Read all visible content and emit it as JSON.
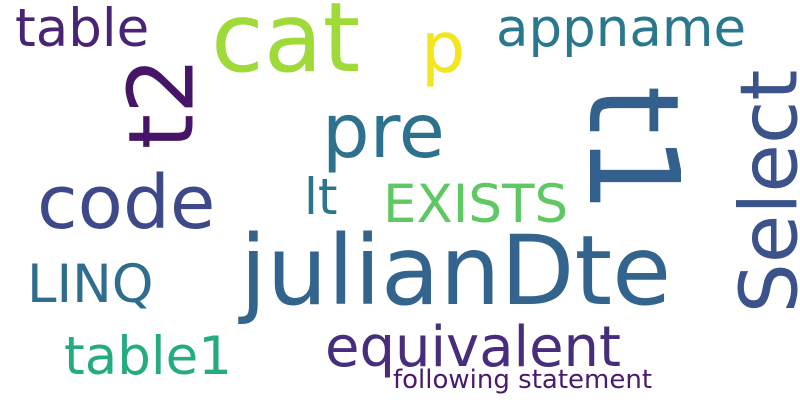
{
  "words": [
    {
      "text": "julianDte",
      "color": "#33648d"
    },
    {
      "text": "t1",
      "color": "#33608c"
    },
    {
      "text": "cat",
      "color": "#a0da39"
    },
    {
      "text": "Select",
      "color": "#3b528b"
    },
    {
      "text": "pre",
      "color": "#2c728e"
    },
    {
      "text": "code",
      "color": "#3e4989"
    },
    {
      "text": "t2",
      "color": "#471567"
    },
    {
      "text": "table",
      "color": "#482475"
    },
    {
      "text": "p",
      "color": "#f3e51e"
    },
    {
      "text": "appname",
      "color": "#29788e"
    },
    {
      "text": "EXISTS",
      "color": "#5ec962"
    },
    {
      "text": "lt",
      "color": "#2b758e"
    },
    {
      "text": "LINQ",
      "color": "#2e6d8e"
    },
    {
      "text": "equivalent",
      "color": "#472d7b"
    },
    {
      "text": "table1",
      "color": "#25ab82"
    },
    {
      "text": "following statement",
      "color": "#481b6d"
    }
  ]
}
